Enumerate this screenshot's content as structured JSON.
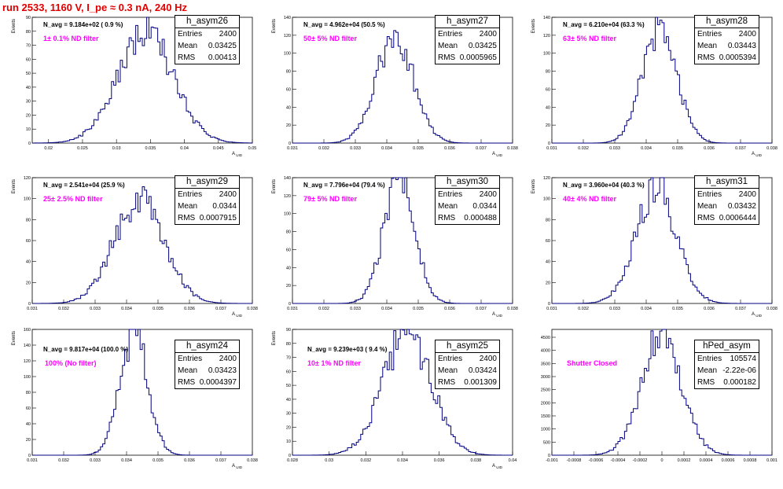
{
  "header": {
    "title": "run 2533,  1160 V, I_pe ≈ 0.3 nA, 240 Hz"
  },
  "colors": {
    "title": "#e00000",
    "filter_label": "#ff00ff",
    "histogram_line": "#000080"
  },
  "stats_labels": {
    "entries": "Entries",
    "mean": "Mean",
    "rms": "RMS"
  },
  "chart_data": [
    {
      "type": "histogram",
      "name": "h_asym26",
      "annotation": "N_avg = 9.184e+02 ( 0.9 %)",
      "filter": "1± 0.1% ND filter",
      "stats": {
        "entries": "2400",
        "mean": "0.03425",
        "rms": "0.00413"
      },
      "xlabel": "A_{UID}",
      "ylabel": "Events",
      "xlim": [
        0.0176,
        0.05
      ],
      "ylim": [
        0,
        90
      ],
      "xticks": [
        "0.02",
        "0.025",
        "0.03",
        "0.035",
        "0.04",
        "0.045",
        "0.05"
      ],
      "xtick_values": [
        0.02,
        0.025,
        0.03,
        0.035,
        0.04,
        0.045,
        0.05
      ],
      "yticks": [
        0,
        10,
        20,
        30,
        40,
        50,
        60,
        70,
        80,
        90
      ],
      "mean": 0.03425,
      "sigma": 0.00413,
      "peak": 78
    },
    {
      "type": "histogram",
      "name": "h_asym27",
      "annotation": "N_avg = 4.962e+04 (50.5 %)",
      "filter": "50± 5% ND filter",
      "stats": {
        "entries": "2400",
        "mean": "0.03425",
        "rms": "0.0005965"
      },
      "xlabel": "A_{UID}",
      "ylabel": "Events",
      "xlim": [
        0.031,
        0.038
      ],
      "ylim": [
        0,
        140
      ],
      "xticks": [
        "0.031",
        "0.032",
        "0.033",
        "0.034",
        "0.035",
        "0.036",
        "0.037",
        "0.038"
      ],
      "xtick_values": [
        0.031,
        0.032,
        0.033,
        0.034,
        0.035,
        0.036,
        0.037,
        0.038
      ],
      "yticks": [
        0,
        20,
        40,
        60,
        80,
        100,
        120,
        140
      ],
      "mean": 0.03425,
      "sigma": 0.0005965,
      "peak": 118
    },
    {
      "type": "histogram",
      "name": "h_asym28",
      "annotation": "N_avg = 6.210e+04 (63.3 %)",
      "filter": "63± 5% ND filter",
      "stats": {
        "entries": "2400",
        "mean": "0.03443",
        "rms": "0.0005394"
      },
      "xlabel": "A_{UID}",
      "ylabel": "Events",
      "xlim": [
        0.031,
        0.038
      ],
      "ylim": [
        0,
        140
      ],
      "xticks": [
        "0.031",
        "0.032",
        "0.033",
        "0.034",
        "0.035",
        "0.036",
        "0.037",
        "0.038"
      ],
      "xtick_values": [
        0.031,
        0.032,
        0.033,
        0.034,
        0.035,
        0.036,
        0.037,
        0.038
      ],
      "yticks": [
        0,
        20,
        40,
        60,
        80,
        100,
        120,
        140
      ],
      "mean": 0.03443,
      "sigma": 0.0005394,
      "peak": 130
    },
    {
      "type": "histogram",
      "name": "h_asym29",
      "annotation": "N_avg = 2.541e+04 (25.9 %)",
      "filter": "25± 2.5% ND filter",
      "stats": {
        "entries": "2400",
        "mean": "0.0344",
        "rms": "0.0007915"
      },
      "xlabel": "A_{UID}",
      "ylabel": "Events",
      "xlim": [
        0.031,
        0.038
      ],
      "ylim": [
        0,
        120
      ],
      "xticks": [
        "0.031",
        "0.032",
        "0.033",
        "0.034",
        "0.035",
        "0.036",
        "0.037",
        "0.038"
      ],
      "xtick_values": [
        0.031,
        0.032,
        0.033,
        0.034,
        0.035,
        0.036,
        0.037,
        0.038
      ],
      "yticks": [
        0,
        20,
        40,
        60,
        80,
        100,
        120
      ],
      "mean": 0.0344,
      "sigma": 0.0007915,
      "peak": 100
    },
    {
      "type": "histogram",
      "name": "h_asym30",
      "annotation": "N_avg = 7.796e+04 (79.4 %)",
      "filter": "79± 5% ND filter",
      "stats": {
        "entries": "2400",
        "mean": "0.0344",
        "rms": "0.000488"
      },
      "xlabel": "A_{UID}",
      "ylabel": "Events",
      "xlim": [
        0.031,
        0.038
      ],
      "ylim": [
        0,
        140
      ],
      "xticks": [
        "0.031",
        "0.032",
        "0.033",
        "0.034",
        "0.035",
        "0.036",
        "0.037",
        "0.038"
      ],
      "xtick_values": [
        0.031,
        0.032,
        0.033,
        0.034,
        0.035,
        0.036,
        0.037,
        0.038
      ],
      "yticks": [
        0,
        20,
        40,
        60,
        80,
        100,
        120,
        140
      ],
      "mean": 0.0344,
      "sigma": 0.000488,
      "peak": 140
    },
    {
      "type": "histogram",
      "name": "h_asym31",
      "annotation": "N_avg = 3.960e+04 (40.3 %)",
      "filter": "40± 4% ND filter",
      "stats": {
        "entries": "2400",
        "mean": "0.03432",
        "rms": "0.0006444"
      },
      "xlabel": "A_{UID}",
      "ylabel": "Events",
      "xlim": [
        0.031,
        0.038
      ],
      "ylim": [
        0,
        120
      ],
      "xticks": [
        "0.031",
        "0.032",
        "0.033",
        "0.034",
        "0.035",
        "0.036",
        "0.037",
        "0.038"
      ],
      "xtick_values": [
        0.031,
        0.032,
        0.033,
        0.034,
        0.035,
        0.036,
        0.037,
        0.038
      ],
      "yticks": [
        0,
        20,
        40,
        60,
        80,
        100,
        120
      ],
      "mean": 0.03432,
      "sigma": 0.0006444,
      "peak": 110
    },
    {
      "type": "histogram",
      "name": "h_asym24",
      "annotation": "N_avg = 9.817e+04 (100.0 %)",
      "filter": "100% (No filter)",
      "stats": {
        "entries": "2400",
        "mean": "0.03423",
        "rms": "0.0004397"
      },
      "xlabel": "A_{UID}",
      "ylabel": "Events",
      "xlim": [
        0.031,
        0.038
      ],
      "ylim": [
        0,
        160
      ],
      "xticks": [
        "0.031",
        "0.032",
        "0.033",
        "0.034",
        "0.035",
        "0.036",
        "0.037",
        "0.038"
      ],
      "xtick_values": [
        0.031,
        0.032,
        0.033,
        0.034,
        0.035,
        0.036,
        0.037,
        0.038
      ],
      "yticks": [
        0,
        20,
        40,
        60,
        80,
        100,
        120,
        140,
        160
      ],
      "mean": 0.03423,
      "sigma": 0.0004397,
      "peak": 155
    },
    {
      "type": "histogram",
      "name": "h_asym25",
      "annotation": "N_avg = 9.239e+03 ( 9.4 %)",
      "filter": "10± 1% ND filter",
      "stats": {
        "entries": "2400",
        "mean": "0.03424",
        "rms": "0.001309"
      },
      "xlabel": "A_{UID}",
      "ylabel": "Events",
      "xlim": [
        0.028,
        0.04
      ],
      "ylim": [
        0,
        90
      ],
      "xticks": [
        "0.028",
        "0.03",
        "0.032",
        "0.034",
        "0.036",
        "0.038",
        "0.04"
      ],
      "xtick_values": [
        0.028,
        0.03,
        0.032,
        0.034,
        0.036,
        0.038,
        0.04
      ],
      "yticks": [
        0,
        10,
        20,
        30,
        40,
        50,
        60,
        70,
        80,
        90
      ],
      "mean": 0.03424,
      "sigma": 0.001309,
      "peak": 88
    },
    {
      "type": "histogram",
      "name": "hPed_asym",
      "annotation": "",
      "filter": "Shutter Closed",
      "stats": {
        "entries": "105574",
        "mean": "-2.22e-06",
        "rms": "0.000182"
      },
      "xlabel": "",
      "ylabel": "",
      "xlim": [
        -0.001,
        0.001
      ],
      "ylim": [
        0,
        4800
      ],
      "xticks": [
        "-0.001",
        "-0.0008",
        "-0.0006",
        "-0.0004",
        "-0.0002",
        "0",
        "0.0002",
        "0.0004",
        "0.0006",
        "0.0008",
        "0.001"
      ],
      "xtick_values": [
        -0.001,
        -0.0008,
        -0.0006,
        -0.0004,
        -0.0002,
        0,
        0.0002,
        0.0004,
        0.0006,
        0.0008,
        0.001
      ],
      "yticks": [
        0,
        500,
        1000,
        1500,
        2000,
        2500,
        3000,
        3500,
        4000,
        4500
      ],
      "mean": -2.22e-06,
      "sigma": 0.000182,
      "peak": 4550
    }
  ]
}
